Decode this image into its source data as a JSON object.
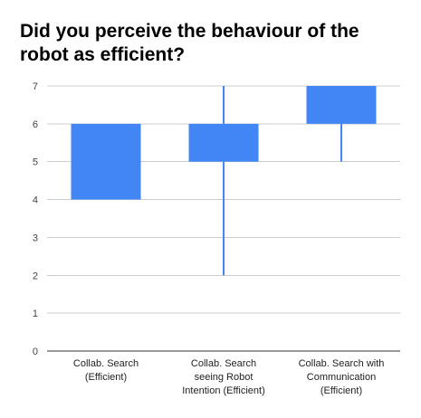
{
  "chart_data": {
    "type": "box",
    "title": "Did you perceive the behaviour of the robot as efficient?",
    "xlabel": "",
    "ylabel": "",
    "ylim": [
      0,
      7
    ],
    "yticks": [
      0,
      1,
      2,
      3,
      4,
      5,
      6,
      7
    ],
    "grid": true,
    "legend": "none",
    "color": "#4285f4",
    "categories": [
      [
        "Collab. Search",
        "(Efficient)"
      ],
      [
        "Collab. Search",
        "seeing Robot",
        "Intention (Efficient)"
      ],
      [
        "Collab. Search with",
        "Communication",
        "(Efficient)"
      ]
    ],
    "boxes": [
      {
        "min": 4,
        "q1": 4,
        "q3": 6,
        "max": 6
      },
      {
        "min": 2,
        "q1": 5,
        "q3": 6,
        "max": 7
      },
      {
        "min": 5,
        "q1": 6,
        "q3": 7,
        "max": 7
      }
    ]
  }
}
